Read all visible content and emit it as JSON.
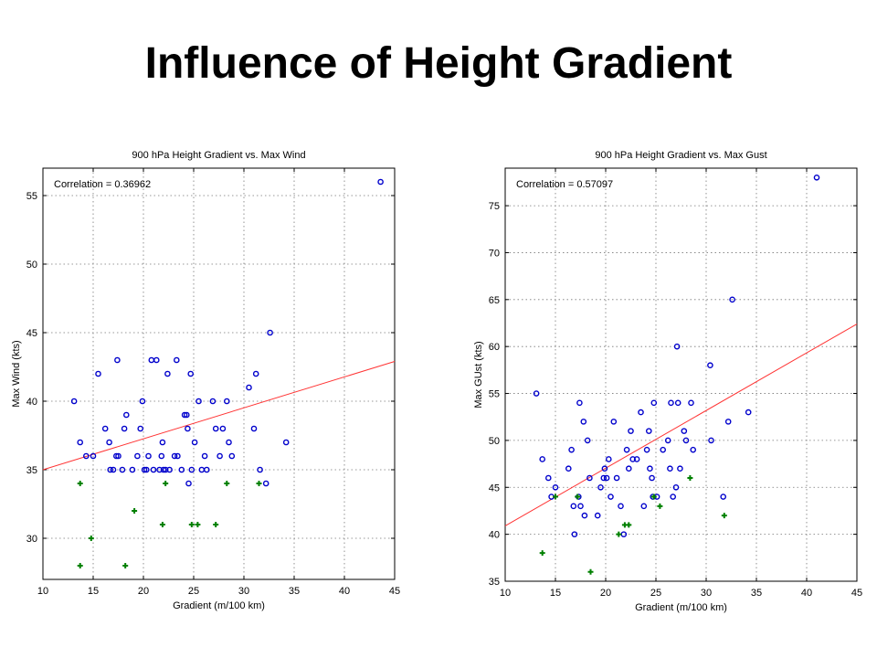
{
  "slide": {
    "title": "Influence of Height Gradient"
  },
  "colors": {
    "obs": "#0000cc",
    "green": "#008000",
    "fit": "#ff3333",
    "grid": "#777777"
  },
  "chart_data": [
    {
      "type": "scatter",
      "title": "900 hPa Height Gradient vs. Max Wind",
      "xlabel": "Gradient (m/100 km)",
      "ylabel": "Max Wind (kts)",
      "annotation": "Correlation = 0.36962",
      "xlim": [
        10,
        45
      ],
      "ylim": [
        27,
        57
      ],
      "xticks": [
        10,
        15,
        20,
        25,
        30,
        35,
        40,
        45
      ],
      "yticks": [
        30,
        35,
        40,
        45,
        50,
        55
      ],
      "grid": true,
      "fit_line": {
        "x": [
          10,
          45
        ],
        "y": [
          35.0,
          42.9
        ]
      },
      "series": [
        {
          "marker": "circle",
          "points": [
            [
              13.1,
              40
            ],
            [
              13.7,
              37
            ],
            [
              14.3,
              36
            ],
            [
              15.0,
              36
            ],
            [
              15.5,
              42
            ],
            [
              16.2,
              38
            ],
            [
              16.6,
              37
            ],
            [
              16.7,
              35
            ],
            [
              17.0,
              35
            ],
            [
              17.3,
              36
            ],
            [
              17.4,
              43
            ],
            [
              17.5,
              36
            ],
            [
              17.9,
              35
            ],
            [
              18.1,
              38
            ],
            [
              18.3,
              39
            ],
            [
              18.9,
              35
            ],
            [
              19.4,
              36
            ],
            [
              19.7,
              38
            ],
            [
              19.9,
              40
            ],
            [
              20.1,
              35
            ],
            [
              20.3,
              35
            ],
            [
              20.5,
              36
            ],
            [
              20.8,
              43
            ],
            [
              21.0,
              35
            ],
            [
              21.3,
              43
            ],
            [
              21.6,
              35
            ],
            [
              21.8,
              36
            ],
            [
              21.9,
              37
            ],
            [
              22.0,
              35
            ],
            [
              22.2,
              35
            ],
            [
              22.4,
              42
            ],
            [
              22.6,
              35
            ],
            [
              23.1,
              36
            ],
            [
              23.3,
              43
            ],
            [
              23.4,
              36
            ],
            [
              23.8,
              35
            ],
            [
              24.1,
              39
            ],
            [
              24.3,
              39
            ],
            [
              24.4,
              38
            ],
            [
              24.5,
              34
            ],
            [
              24.7,
              42
            ],
            [
              24.8,
              35
            ],
            [
              25.1,
              37
            ],
            [
              25.5,
              40
            ],
            [
              25.8,
              35
            ],
            [
              26.1,
              36
            ],
            [
              26.3,
              35
            ],
            [
              26.9,
              40
            ],
            [
              27.2,
              38
            ],
            [
              27.6,
              36
            ],
            [
              27.9,
              38
            ],
            [
              28.3,
              40
            ],
            [
              28.5,
              37
            ],
            [
              28.8,
              36
            ],
            [
              30.5,
              41
            ],
            [
              31.0,
              38
            ],
            [
              31.2,
              42
            ],
            [
              31.6,
              35
            ],
            [
              32.2,
              34
            ],
            [
              32.6,
              45
            ],
            [
              34.2,
              37
            ],
            [
              43.6,
              56
            ]
          ]
        },
        {
          "marker": "plus",
          "points": [
            [
              13.7,
              34
            ],
            [
              13.7,
              28
            ],
            [
              14.8,
              30
            ],
            [
              18.2,
              28
            ],
            [
              19.1,
              32
            ],
            [
              21.9,
              31
            ],
            [
              22.2,
              34
            ],
            [
              24.8,
              31
            ],
            [
              25.4,
              31
            ],
            [
              27.2,
              31
            ],
            [
              28.3,
              34
            ],
            [
              31.5,
              34
            ]
          ]
        }
      ]
    },
    {
      "type": "scatter",
      "title": "900 hPa Height Gradient vs. Max Gust",
      "xlabel": "Gradient (m/100 km)",
      "ylabel": "Max GUst (kts)",
      "annotation": "Correlation = 0.57097",
      "xlim": [
        10,
        45
      ],
      "ylim": [
        35,
        79
      ],
      "xticks": [
        10,
        15,
        20,
        25,
        30,
        35,
        40,
        45
      ],
      "yticks": [
        35,
        40,
        45,
        50,
        55,
        60,
        65,
        70,
        75
      ],
      "grid": true,
      "fit_line": {
        "x": [
          10,
          45
        ],
        "y": [
          40.9,
          62.4
        ]
      },
      "series": [
        {
          "marker": "circle",
          "points": [
            [
              13.1,
              55
            ],
            [
              13.7,
              48
            ],
            [
              14.3,
              46
            ],
            [
              14.6,
              44
            ],
            [
              15.0,
              45
            ],
            [
              16.3,
              47
            ],
            [
              16.6,
              49
            ],
            [
              16.8,
              43
            ],
            [
              16.9,
              40
            ],
            [
              17.3,
              44
            ],
            [
              17.4,
              54
            ],
            [
              17.5,
              43
            ],
            [
              17.8,
              52
            ],
            [
              17.9,
              42
            ],
            [
              18.2,
              50
            ],
            [
              18.4,
              46
            ],
            [
              19.2,
              42
            ],
            [
              19.5,
              45
            ],
            [
              19.8,
              46
            ],
            [
              19.9,
              47
            ],
            [
              20.1,
              46
            ],
            [
              20.3,
              48
            ],
            [
              20.5,
              44
            ],
            [
              20.8,
              52
            ],
            [
              21.1,
              46
            ],
            [
              21.5,
              43
            ],
            [
              21.8,
              40
            ],
            [
              22.1,
              49
            ],
            [
              22.3,
              47
            ],
            [
              22.5,
              51
            ],
            [
              22.7,
              48
            ],
            [
              23.1,
              48
            ],
            [
              23.5,
              53
            ],
            [
              23.8,
              43
            ],
            [
              24.1,
              49
            ],
            [
              24.3,
              51
            ],
            [
              24.4,
              47
            ],
            [
              24.6,
              46
            ],
            [
              24.7,
              44
            ],
            [
              24.8,
              54
            ],
            [
              25.1,
              44
            ],
            [
              25.7,
              49
            ],
            [
              26.2,
              50
            ],
            [
              26.4,
              47
            ],
            [
              26.5,
              54
            ],
            [
              26.7,
              44
            ],
            [
              27.0,
              45
            ],
            [
              27.1,
              60
            ],
            [
              27.2,
              54
            ],
            [
              27.4,
              47
            ],
            [
              27.8,
              51
            ],
            [
              28.0,
              50
            ],
            [
              28.5,
              54
            ],
            [
              28.7,
              49
            ],
            [
              30.4,
              58
            ],
            [
              30.5,
              50
            ],
            [
              31.7,
              44
            ],
            [
              32.2,
              52
            ],
            [
              32.6,
              65
            ],
            [
              34.2,
              53
            ],
            [
              41.0,
              78
            ]
          ]
        },
        {
          "marker": "plus",
          "points": [
            [
              13.7,
              38
            ],
            [
              15.0,
              44
            ],
            [
              17.2,
              44
            ],
            [
              18.5,
              36
            ],
            [
              21.3,
              40
            ],
            [
              21.9,
              41
            ],
            [
              22.3,
              41
            ],
            [
              24.8,
              44
            ],
            [
              25.4,
              43
            ],
            [
              28.4,
              46
            ],
            [
              31.8,
              42
            ]
          ]
        }
      ]
    }
  ]
}
